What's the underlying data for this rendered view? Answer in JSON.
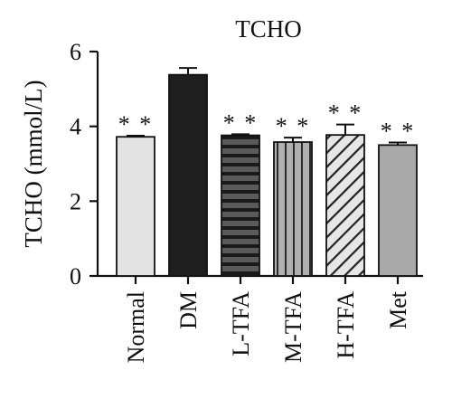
{
  "chart_data": {
    "type": "bar",
    "title": "TCHO",
    "xlabel": "",
    "ylabel": "TCHO (mmol/L)",
    "ylim": [
      0,
      6
    ],
    "yticks": [
      0,
      2,
      4,
      6
    ],
    "categories": [
      "Normal",
      "DM",
      "L-TFA",
      "M-TFA",
      "H-TFA",
      "Met"
    ],
    "values": [
      3.72,
      5.38,
      3.76,
      3.58,
      3.77,
      3.5
    ],
    "errors": [
      0.03,
      0.18,
      0.03,
      0.12,
      0.28,
      0.07
    ],
    "annotations": [
      "* *",
      "",
      "* *",
      "* *",
      "* *",
      "* *"
    ],
    "bar_styles": [
      {
        "fill": "#e3e3e3",
        "pattern": "none"
      },
      {
        "fill": "#1e1e1e",
        "pattern": "none"
      },
      {
        "fill": "#5a5a5a",
        "pattern": "horizontal-lines"
      },
      {
        "fill": "#b0b0b0",
        "pattern": "vertical-lines"
      },
      {
        "fill": "#e6e6e6",
        "pattern": "diagonal-lines"
      },
      {
        "fill": "#a9a9a9",
        "pattern": "none"
      }
    ],
    "grid": false,
    "legend": "none"
  }
}
